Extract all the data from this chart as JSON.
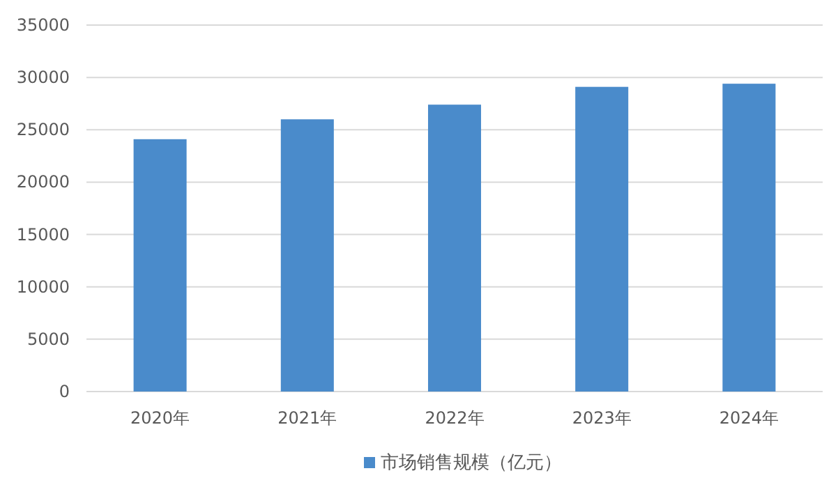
{
  "chart_data": {
    "type": "bar",
    "categories": [
      "2020年",
      "2021年",
      "2022年",
      "2023年",
      "2024年"
    ],
    "series": [
      {
        "name": "市场销售规模（亿元）",
        "color": "#4a8bcb",
        "values": [
          24100,
          26000,
          27400,
          29100,
          29400
        ]
      }
    ],
    "ylim": [
      0,
      35000
    ],
    "yticks": [
      0,
      5000,
      10000,
      15000,
      20000,
      25000,
      30000,
      35000
    ],
    "grid": "y",
    "legend": "bottom"
  }
}
